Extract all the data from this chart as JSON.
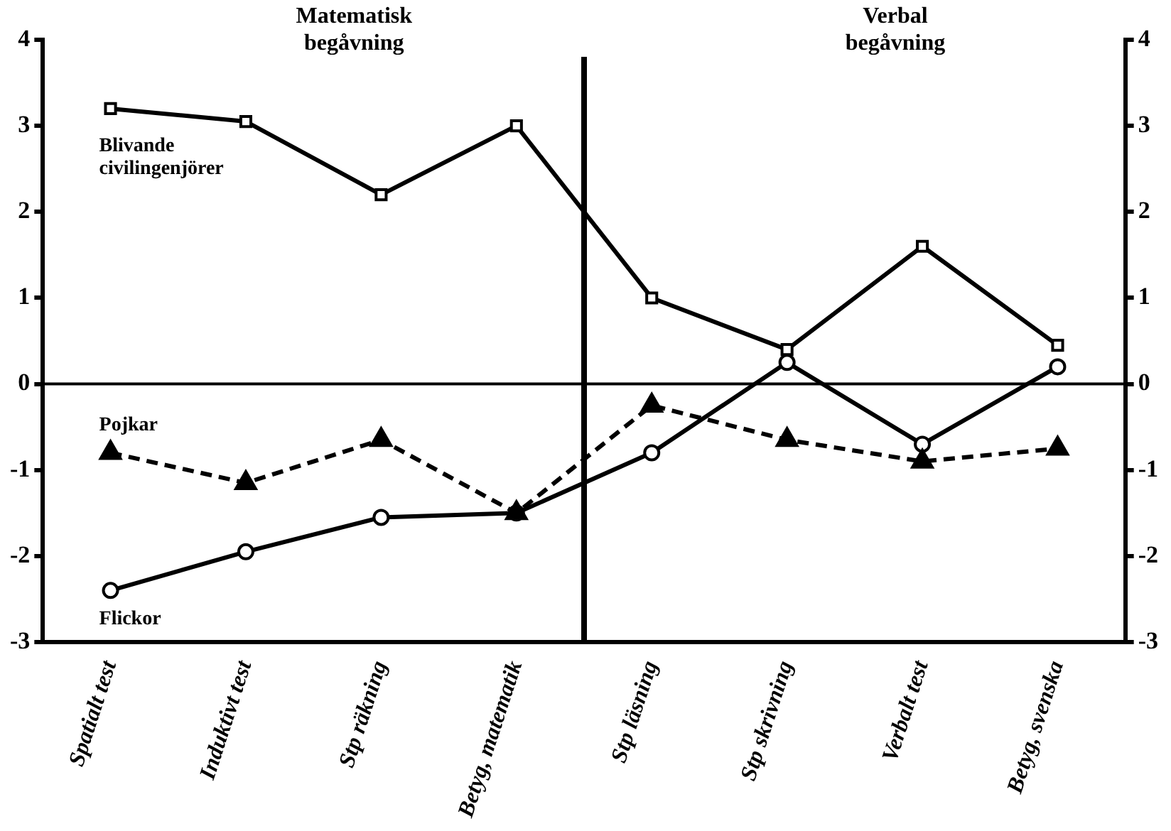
{
  "chart_data": {
    "type": "line",
    "categories": [
      "Spatialt test",
      "Induktivt test",
      "Stp räkning",
      "Betyg, matematik",
      "Stp läsning",
      "Stp skrivning",
      "Verbalt test",
      "Betyg, svenska"
    ],
    "series": [
      {
        "name": "Blivande civilingenjörer",
        "color": "#000000",
        "marker": "square",
        "line_style": "solid",
        "values": [
          3.2,
          3.05,
          2.2,
          3.0,
          1.0,
          0.4,
          1.6,
          0.45
        ]
      },
      {
        "name": "Pojkar",
        "color": "#000000",
        "marker": "triangle",
        "line_style": "dashed",
        "values": [
          -0.8,
          -1.15,
          -0.65,
          -1.5,
          -0.25,
          -0.65,
          -0.9,
          -0.75
        ]
      },
      {
        "name": "Flickor",
        "color": "#000000",
        "marker": "circle",
        "line_style": "solid",
        "values": [
          -2.4,
          -1.95,
          -1.55,
          -1.5,
          -0.8,
          0.25,
          -0.7,
          0.2
        ]
      }
    ],
    "ylim": [
      -3,
      4
    ],
    "yticks": [
      -3,
      -2,
      -1,
      0,
      1,
      2,
      3,
      4
    ],
    "y2lim": [
      -3,
      4
    ],
    "y2ticks": [
      -3,
      -2,
      -1,
      0,
      1,
      2,
      3,
      4
    ],
    "ref_lines": [
      {
        "axis": "y",
        "value": 0
      }
    ],
    "annotations": [
      "Matematisk begåvning",
      "Verbal begåvning"
    ],
    "grid": false,
    "legend": false
  }
}
